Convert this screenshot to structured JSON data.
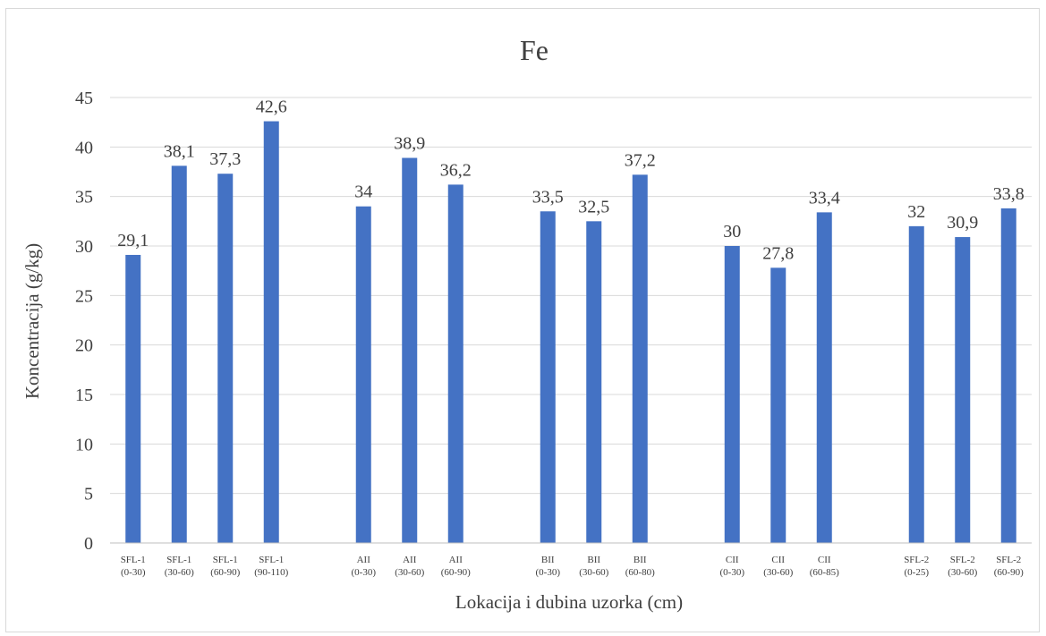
{
  "chart_data": {
    "type": "bar",
    "title": "Fe",
    "xlabel": "Lokacija i dubina uzorka (cm)",
    "ylabel": "Koncentracija (g/kg)",
    "ylim": [
      0,
      45
    ],
    "yticks": [
      0,
      5,
      10,
      15,
      20,
      25,
      30,
      35,
      40,
      45
    ],
    "grid": true,
    "bar_color": "#4472c4",
    "categories": [
      [
        "SFL-1",
        "(0-30)"
      ],
      [
        "SFL-1",
        "(30-60)"
      ],
      [
        "SFL-1",
        "(60-90)"
      ],
      [
        "SFL-1",
        "(90-110)"
      ],
      [
        "",
        ""
      ],
      [
        "AII",
        "(0-30)"
      ],
      [
        "AII",
        "(30-60)"
      ],
      [
        "AII",
        "(60-90)"
      ],
      [
        "",
        ""
      ],
      [
        "BII",
        "(0-30)"
      ],
      [
        "BII",
        "(30-60)"
      ],
      [
        "BII",
        "(60-80)"
      ],
      [
        "",
        ""
      ],
      [
        "CII",
        "(0-30)"
      ],
      [
        "CII",
        "(30-60)"
      ],
      [
        "CII",
        "(60-85)"
      ],
      [
        "",
        ""
      ],
      [
        "SFL-2",
        "(0-25)"
      ],
      [
        "SFL-2",
        "(30-60)"
      ],
      [
        "SFL-2",
        "(60-90)"
      ]
    ],
    "values": [
      29.1,
      38.1,
      37.3,
      42.6,
      null,
      34,
      38.9,
      36.2,
      null,
      33.5,
      32.5,
      37.2,
      null,
      30,
      27.8,
      33.4,
      null,
      32,
      30.9,
      33.8
    ],
    "data_labels": [
      "29,1",
      "38,1",
      "37,3",
      "42,6",
      "",
      "34",
      "38,9",
      "36,2",
      "",
      "33,5",
      "32,5",
      "37,2",
      "",
      "30",
      "27,8",
      "33,4",
      "",
      "32",
      "30,9",
      "33,8"
    ]
  }
}
